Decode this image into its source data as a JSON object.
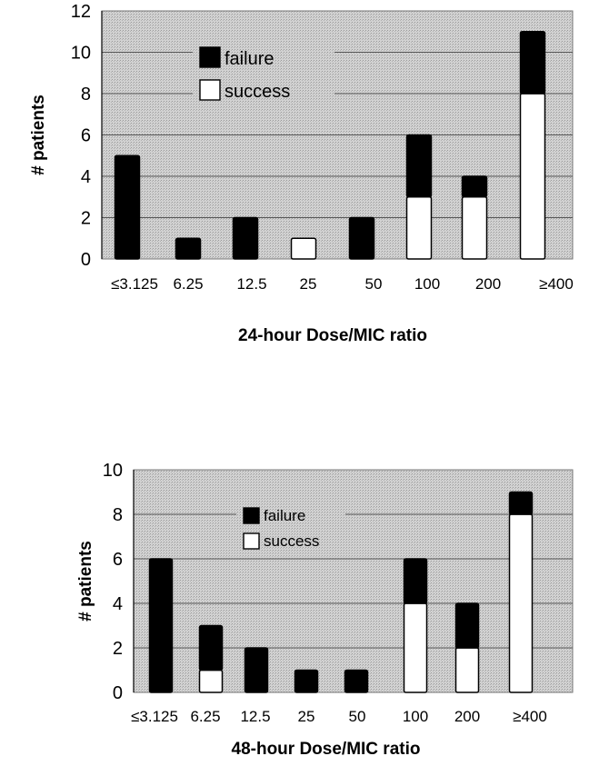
{
  "chart_data": [
    {
      "type": "bar",
      "stacked": true,
      "categories": [
        "≤3.125",
        "6.25",
        "12.5",
        "25",
        "50",
        "100",
        "200",
        "≥400"
      ],
      "series": [
        {
          "name": "failure",
          "values": [
            5,
            1,
            2,
            0,
            2,
            3,
            1,
            3
          ],
          "color": "#000000"
        },
        {
          "name": "success",
          "values": [
            0,
            0,
            0,
            1,
            0,
            3,
            3,
            8
          ],
          "color": "#ffffff"
        }
      ],
      "xlabel": "24-hour Dose/MIC ratio",
      "ylabel": "# patients",
      "ylim": [
        0,
        12
      ],
      "yticks": [
        "0",
        "2",
        "4",
        "6",
        "8",
        "10",
        "12"
      ],
      "grid": true,
      "legend_position": "top-left"
    },
    {
      "type": "bar",
      "stacked": true,
      "categories": [
        "≤3.125",
        "6.25",
        "12.5",
        "25",
        "50",
        "100",
        "200",
        "≥400"
      ],
      "series": [
        {
          "name": "failure",
          "values": [
            6,
            2,
            2,
            1,
            1,
            2,
            2,
            1
          ],
          "color": "#000000"
        },
        {
          "name": "success",
          "values": [
            0,
            1,
            0,
            0,
            0,
            4,
            2,
            8
          ],
          "color": "#ffffff"
        }
      ],
      "xlabel": "48-hour Dose/MIC ratio",
      "ylabel": "# patients",
      "ylim": [
        0,
        10
      ],
      "yticks": [
        "0",
        "2",
        "4",
        "6",
        "8",
        "10"
      ],
      "grid": true,
      "legend_position": "top-center"
    }
  ]
}
